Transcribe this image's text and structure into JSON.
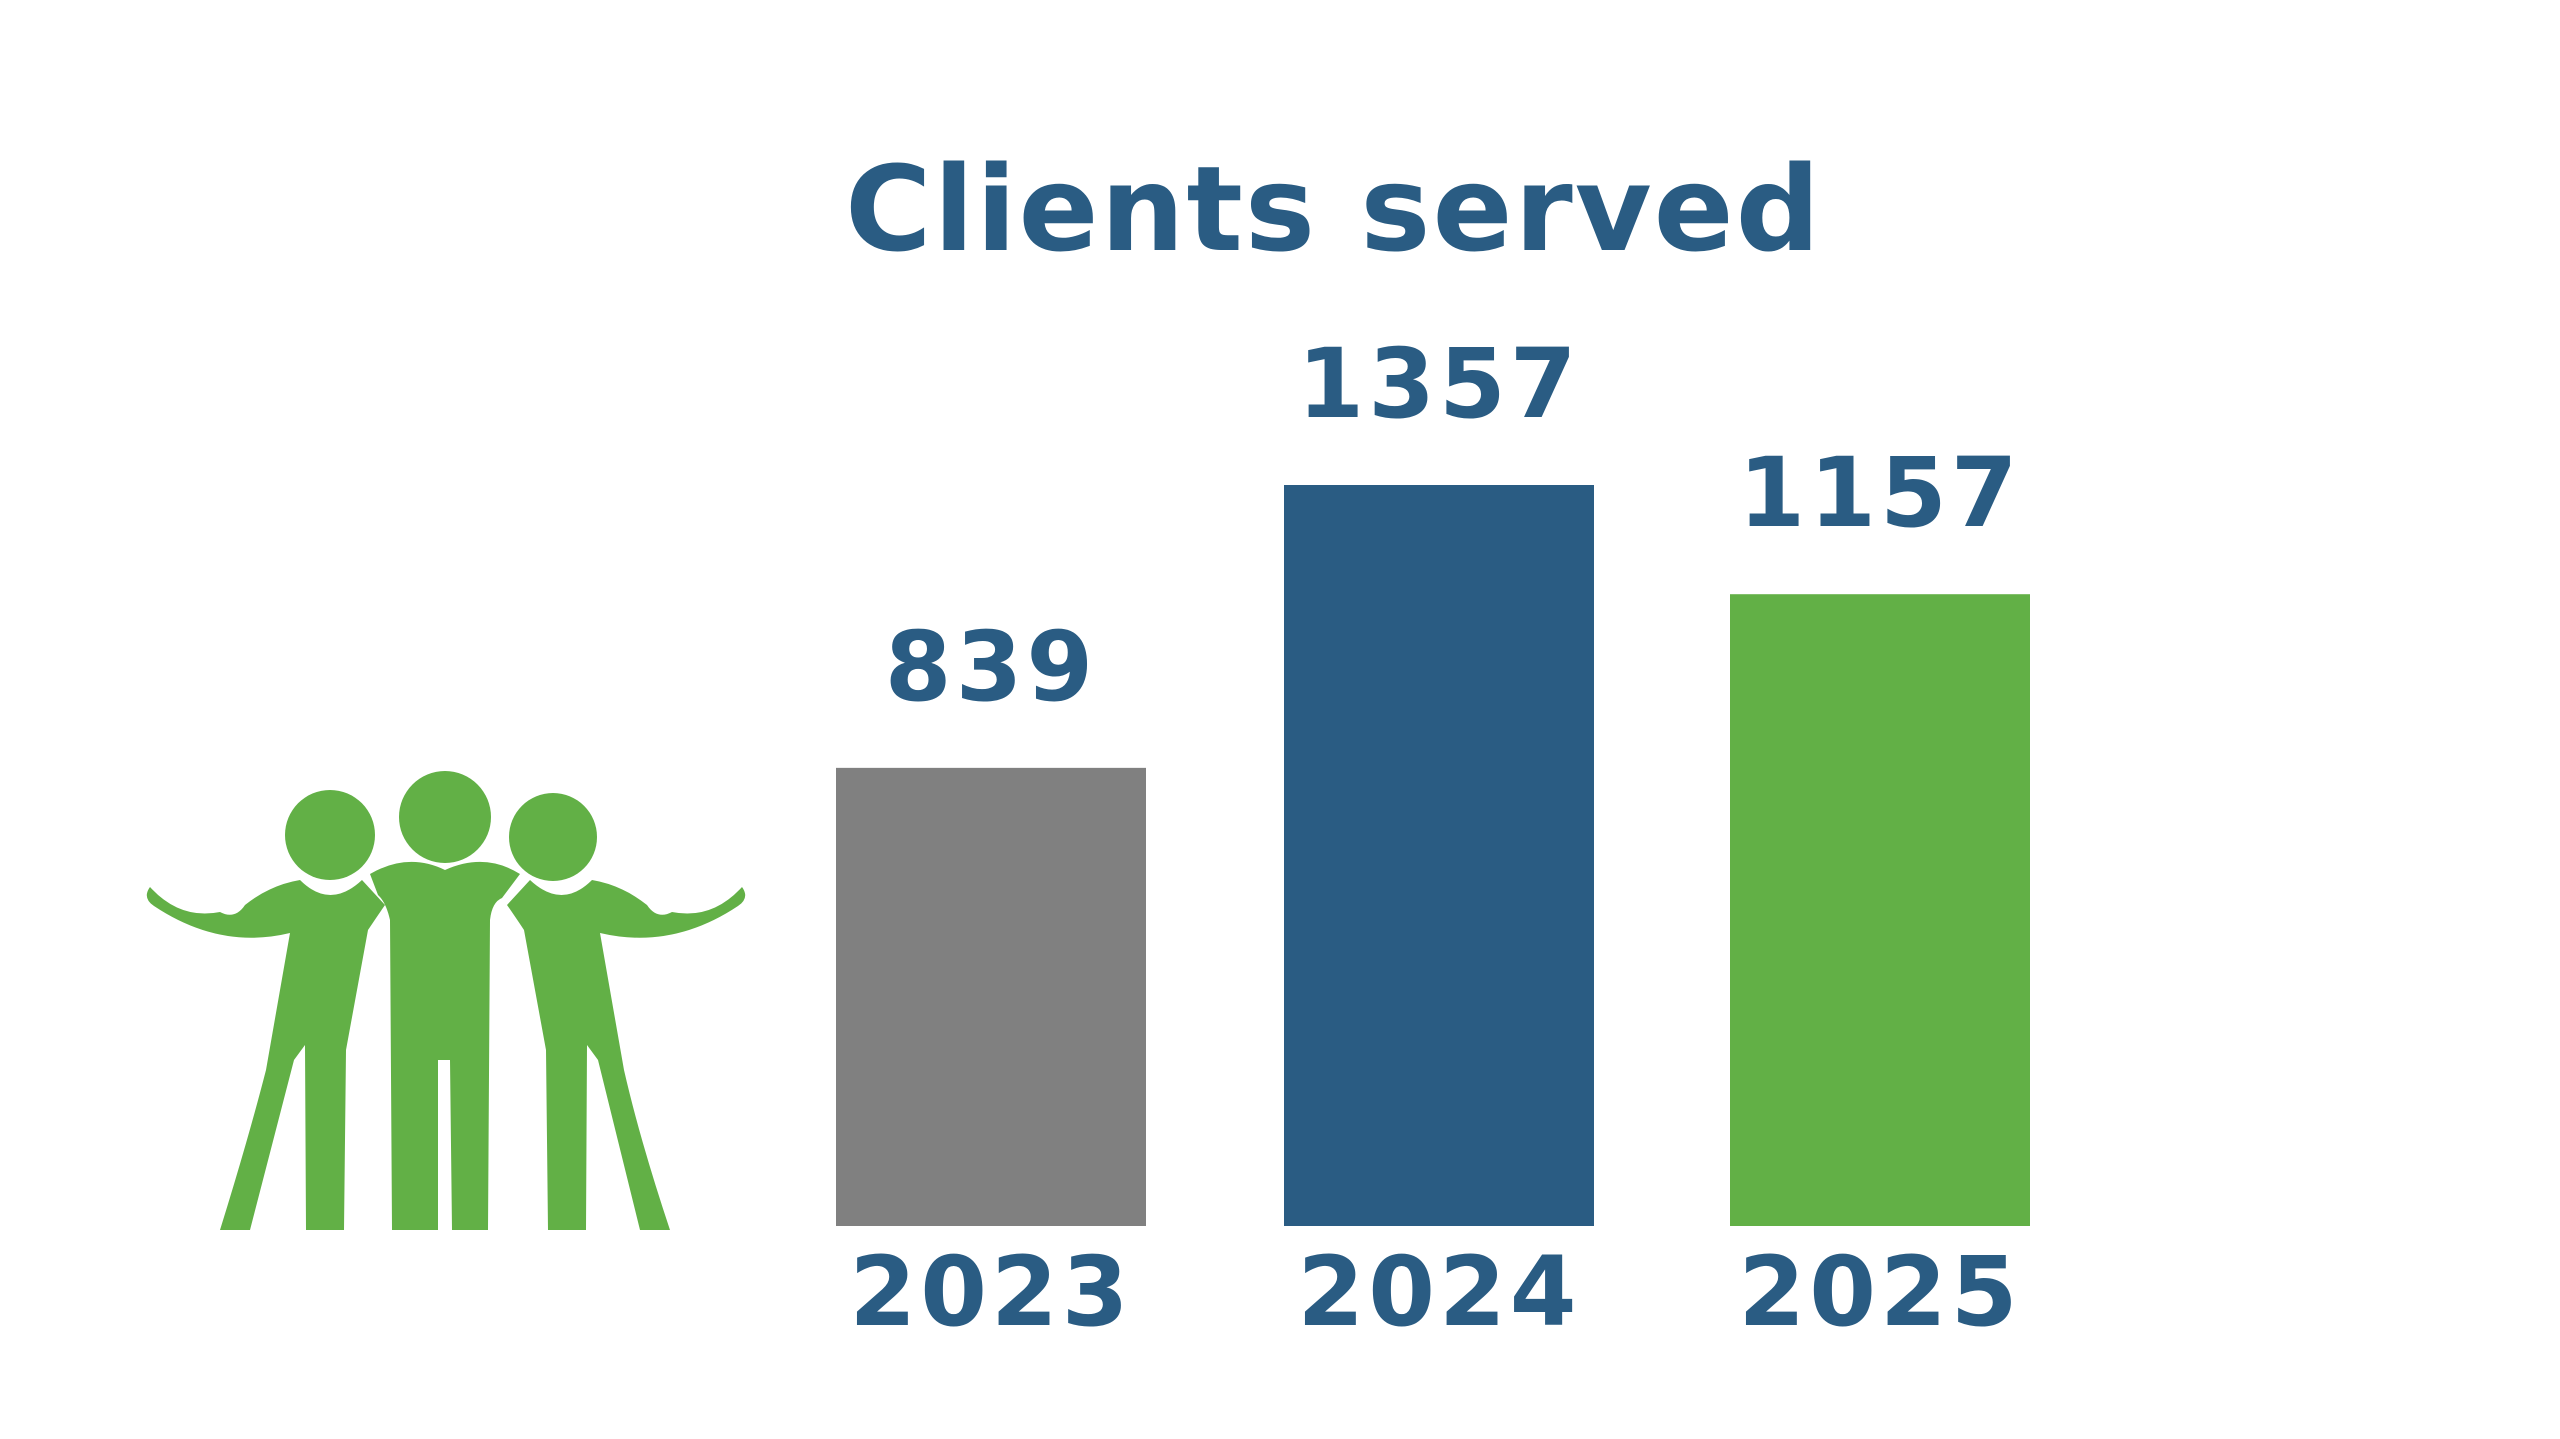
{
  "chart_data": {
    "type": "bar",
    "title": "Clients served",
    "categories": [
      "2023",
      "2024",
      "2025"
    ],
    "values": [
      839,
      1357,
      1157
    ],
    "ylim": [
      0,
      1357
    ],
    "grid": false,
    "legend": "none",
    "colors": [
      "#808080",
      "#2a5c83",
      "#62b046"
    ]
  },
  "colors": {
    "title": "#2a5c83",
    "labels": "#2a5c83",
    "icon": "#62b046"
  },
  "icon": "group-of-three-people-icon"
}
